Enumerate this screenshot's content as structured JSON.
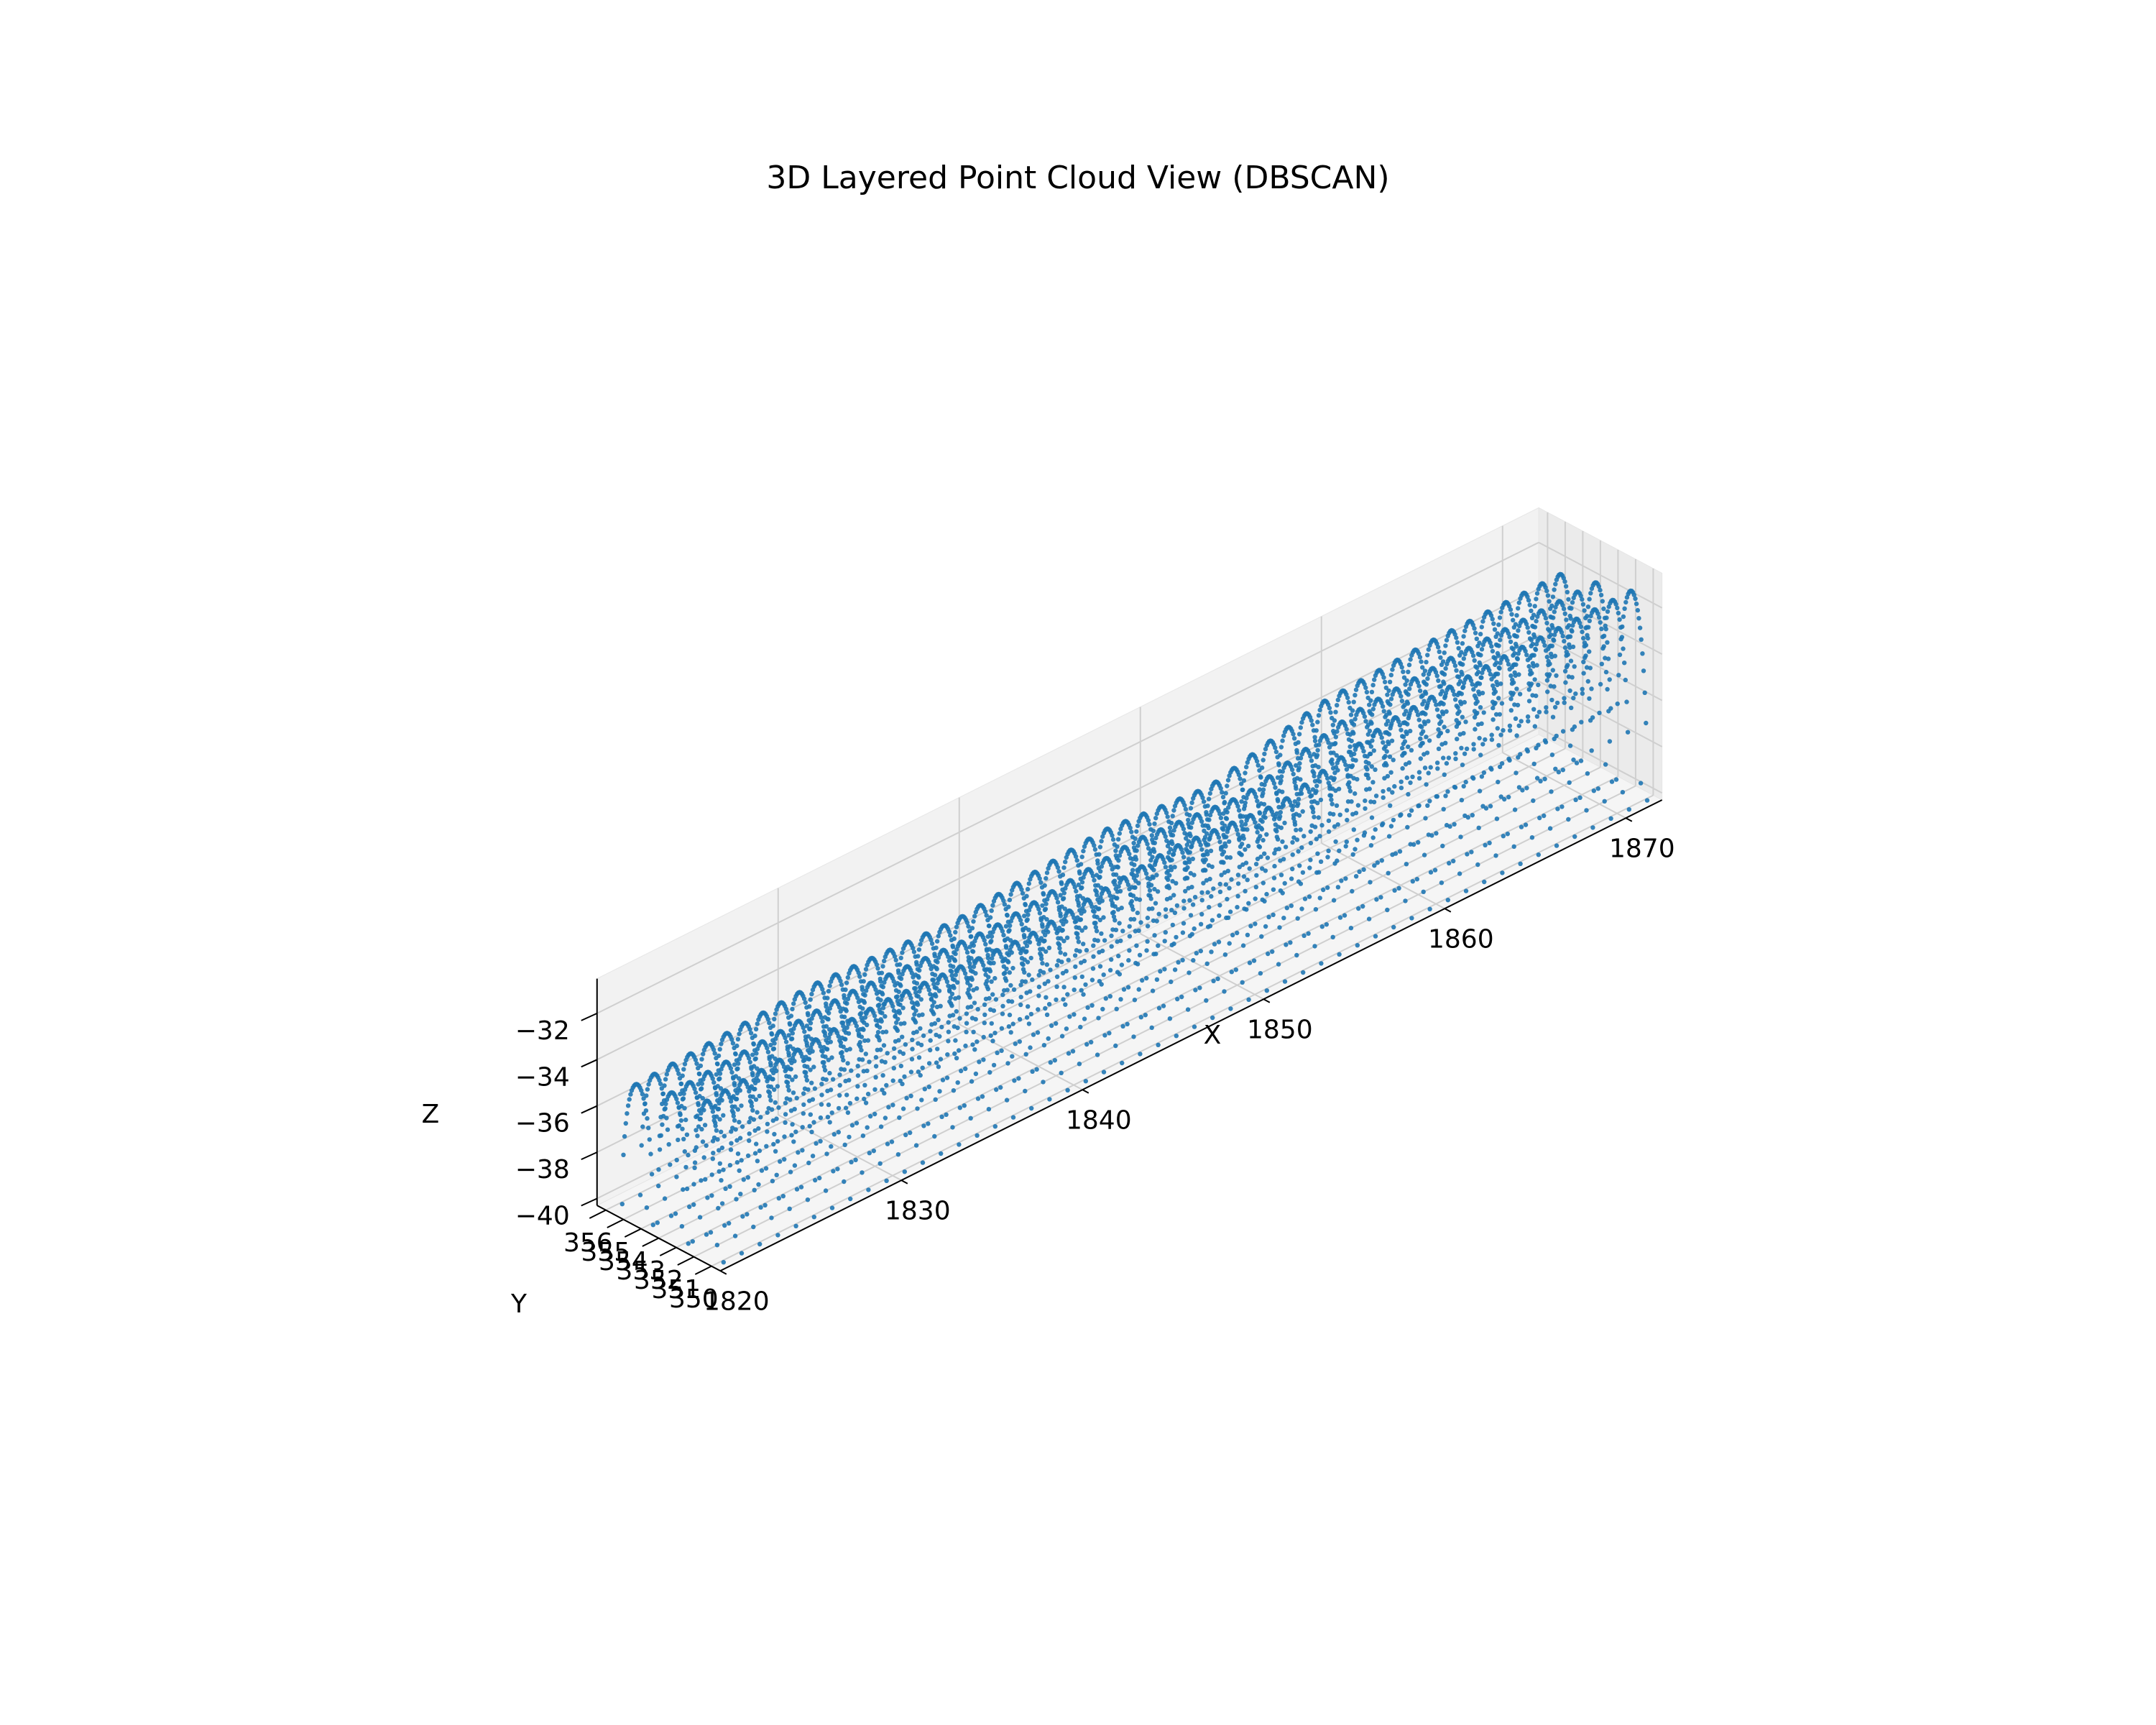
{
  "chart_data": {
    "type": "scatter",
    "title": "3D Layered Point Cloud View (DBSCAN)",
    "xlabel": "X",
    "ylabel": "Y",
    "zlabel": "Z",
    "xlim": [
      1820,
      1872
    ],
    "ylim": [
      349.5,
      356.5
    ],
    "zlim": [
      -40.3,
      -30.5
    ],
    "x_ticks": [
      "1820",
      "1830",
      "1840",
      "1850",
      "1860",
      "1870"
    ],
    "y_ticks": [
      "350",
      "351",
      "352",
      "353",
      "354",
      "355",
      "356"
    ],
    "z_ticks": [
      "−40",
      "−38",
      "−36",
      "−34",
      "−32"
    ],
    "point_color": "#1f77b4",
    "grid": true,
    "pane_color": "#f2f2f2",
    "structure": {
      "arch_rows_y": [
        350.5,
        352.5,
        354.5
      ],
      "arch_spacing_x": 1.0,
      "arch_half_width_y": 1.0,
      "z_base": -40,
      "top_z_profile": [
        {
          "x": 1820,
          "z": -33.5
        },
        {
          "x": 1830,
          "z": -33.0
        },
        {
          "x": 1838,
          "z": -33.3
        },
        {
          "x": 1846,
          "z": -32.6
        },
        {
          "x": 1852,
          "z": -33.0
        },
        {
          "x": 1858,
          "z": -31.8
        },
        {
          "x": 1864,
          "z": -31.5
        },
        {
          "x": 1871,
          "z": -31.4
        }
      ]
    }
  }
}
